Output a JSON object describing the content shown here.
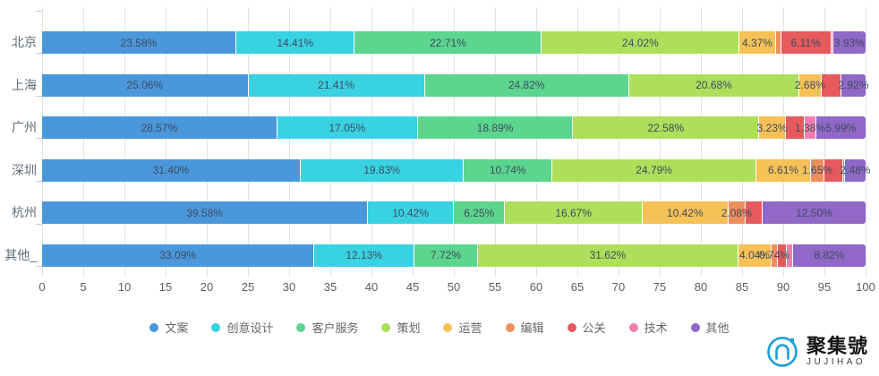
{
  "chart_data": {
    "type": "bar",
    "orientation": "horizontal-stacked",
    "title": "",
    "xlabel": "",
    "ylabel": "",
    "xlim": [
      0,
      100
    ],
    "grid": true,
    "legend_position": "bottom",
    "categories": [
      "北京",
      "上海",
      "广州",
      "深圳",
      "杭州",
      "其他_"
    ],
    "x_ticks": [
      "0",
      "5",
      "10",
      "15",
      "20",
      "25",
      "30",
      "35",
      "40",
      "45",
      "50",
      "55",
      "60",
      "65",
      "70",
      "75",
      "80",
      "85",
      "90",
      "95",
      "100"
    ],
    "series": [
      {
        "name": "文案",
        "color": "#4A97DC",
        "values": [
          23.58,
          25.06,
          28.57,
          31.4,
          39.58,
          33.09
        ],
        "labels": [
          "23.58%",
          "25.06%",
          "28.57%",
          "31.40%",
          "39.58%",
          "33.09%"
        ]
      },
      {
        "name": "创意设计",
        "color": "#38D2E2",
        "values": [
          14.41,
          21.41,
          17.05,
          19.83,
          10.42,
          12.13
        ],
        "labels": [
          "14.41%",
          "21.41%",
          "17.05%",
          "19.83%",
          "10.42%",
          "12.13%"
        ]
      },
      {
        "name": "客户服务",
        "color": "#5CD58F",
        "values": [
          22.71,
          24.82,
          18.89,
          10.74,
          6.25,
          7.72
        ],
        "labels": [
          "22.71%",
          "24.82%",
          "18.89%",
          "10.74%",
          "6.25%",
          "7.72%"
        ]
      },
      {
        "name": "策划",
        "color": "#ADDF5B",
        "values": [
          24.02,
          20.68,
          22.58,
          24.79,
          16.67,
          31.62
        ],
        "labels": [
          "24.02%",
          "20.68%",
          "22.58%",
          "24.79%",
          "16.67%",
          "31.62%"
        ]
      },
      {
        "name": "运营",
        "color": "#F6C156",
        "values": [
          4.37,
          2.68,
          3.23,
          6.61,
          10.42,
          4.04
        ],
        "labels": [
          "4.37%",
          "2.68%",
          "3.23%",
          "6.61%",
          "10.42%",
          "4.04%"
        ]
      },
      {
        "name": "编辑",
        "color": "#EF8E5D",
        "values": [
          0.66,
          0,
          0,
          1.65,
          2.08,
          0.74
        ],
        "labels": [
          "",
          "",
          "",
          "1.65%",
          "2.08%",
          "0.74%"
        ]
      },
      {
        "name": "公关",
        "color": "#E65A5E",
        "values": [
          6.11,
          2.43,
          2.31,
          2.3,
          2.08,
          1.1
        ],
        "labels": [
          "6.11%",
          "",
          "",
          "",
          "",
          ""
        ]
      },
      {
        "name": "技术",
        "color": "#F07FAE",
        "values": [
          0.21,
          0,
          1.38,
          0.2,
          0,
          0.74
        ],
        "labels": [
          "",
          "",
          "1.38%",
          "",
          "",
          ""
        ]
      },
      {
        "name": "其他",
        "color": "#8F68C8",
        "values": [
          3.93,
          2.92,
          5.99,
          2.48,
          12.5,
          8.82
        ],
        "labels": [
          "3.93%",
          "2.92%",
          "5.99%",
          "2.48%",
          "12.50%",
          "8.82%"
        ]
      }
    ]
  },
  "watermark": {
    "title": "聚集號",
    "subtitle": "JUJIHAO",
    "icon": "jujihao-logo",
    "icon_color": "#1B9ED8"
  }
}
